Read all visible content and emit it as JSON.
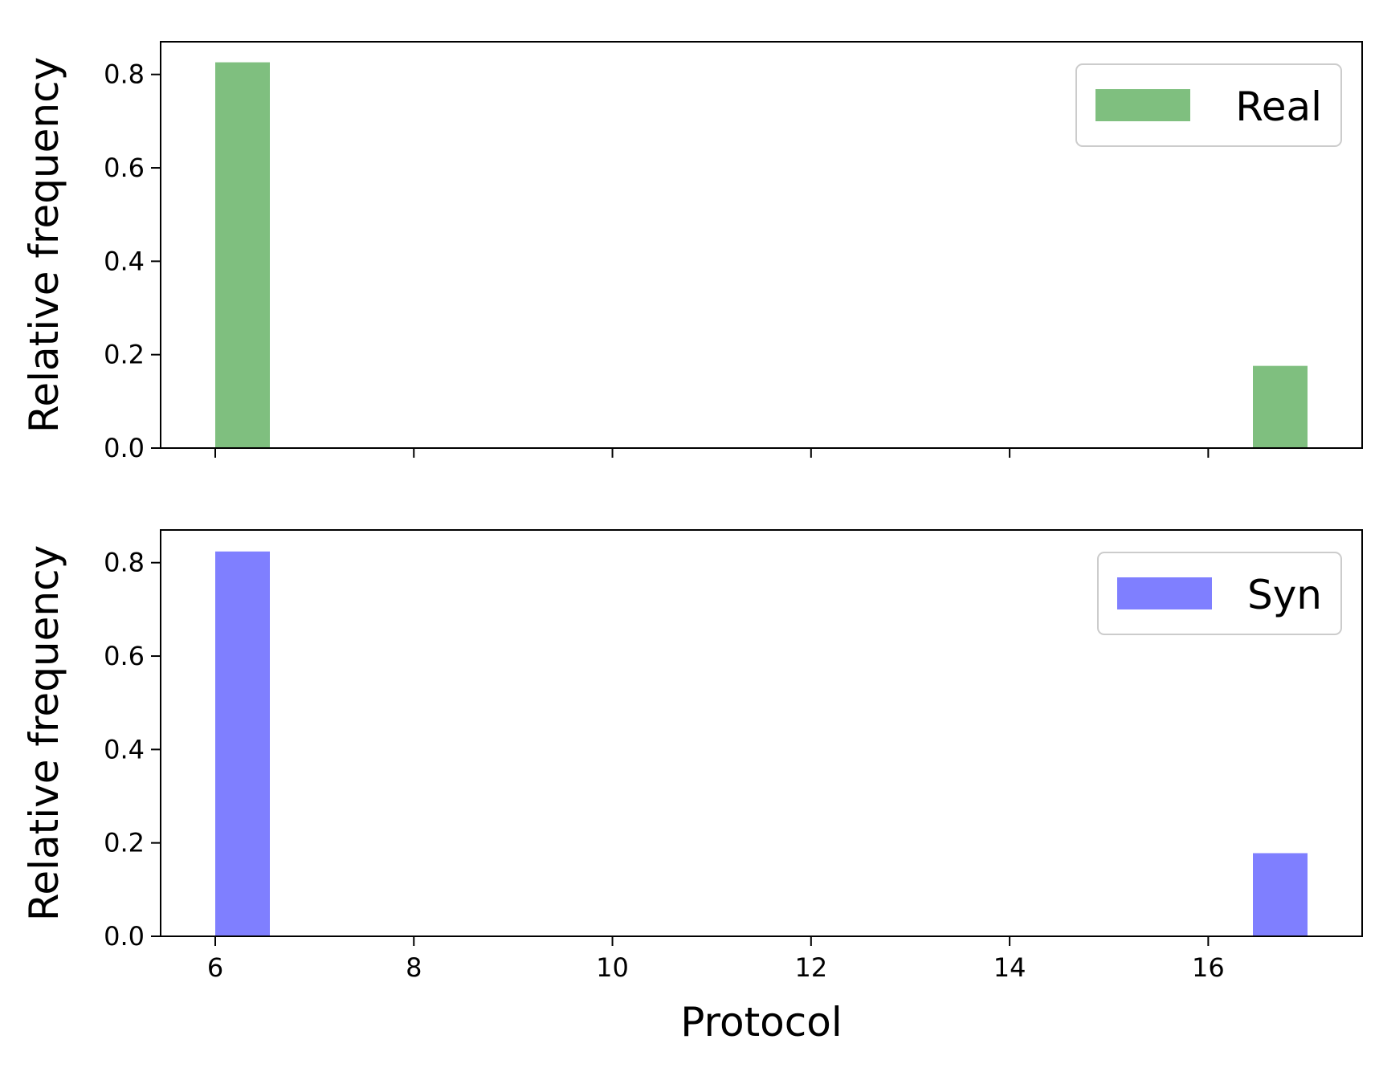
{
  "chart_data": [
    {
      "type": "bar",
      "xlabel": "",
      "ylabel": "Relative frequency",
      "xlim": [
        5.45,
        17.55
      ],
      "ylim": [
        0,
        0.87
      ],
      "xticks": [
        6,
        8,
        10,
        12,
        14,
        16
      ],
      "show_xtick_labels": false,
      "yticks": [
        0.0,
        0.2,
        0.4,
        0.6,
        0.8
      ],
      "ytick_labels": [
        "0.0",
        "0.2",
        "0.4",
        "0.6",
        "0.8"
      ],
      "bar_width": 0.55,
      "legend_position": "upper right",
      "grid": false,
      "series": [
        {
          "name": "Real",
          "color": "#008000",
          "opacity": 0.5,
          "x": [
            6,
            16.45
          ],
          "values": [
            0.826,
            0.176
          ]
        }
      ]
    },
    {
      "type": "bar",
      "xlabel": "Protocol",
      "ylabel": "Relative frequency",
      "xlim": [
        5.45,
        17.55
      ],
      "ylim": [
        0,
        0.87
      ],
      "xticks": [
        6,
        8,
        10,
        12,
        14,
        16
      ],
      "xtick_labels": [
        "6",
        "8",
        "10",
        "12",
        "14",
        "16"
      ],
      "show_xtick_labels": true,
      "yticks": [
        0.0,
        0.2,
        0.4,
        0.6,
        0.8
      ],
      "ytick_labels": [
        "0.0",
        "0.2",
        "0.4",
        "0.6",
        "0.8"
      ],
      "bar_width": 0.55,
      "legend_position": "upper right",
      "grid": false,
      "series": [
        {
          "name": "Syn",
          "color": "#0000ff",
          "opacity": 0.5,
          "x": [
            6,
            16.45
          ],
          "values": [
            0.824,
            0.178
          ]
        }
      ]
    }
  ]
}
